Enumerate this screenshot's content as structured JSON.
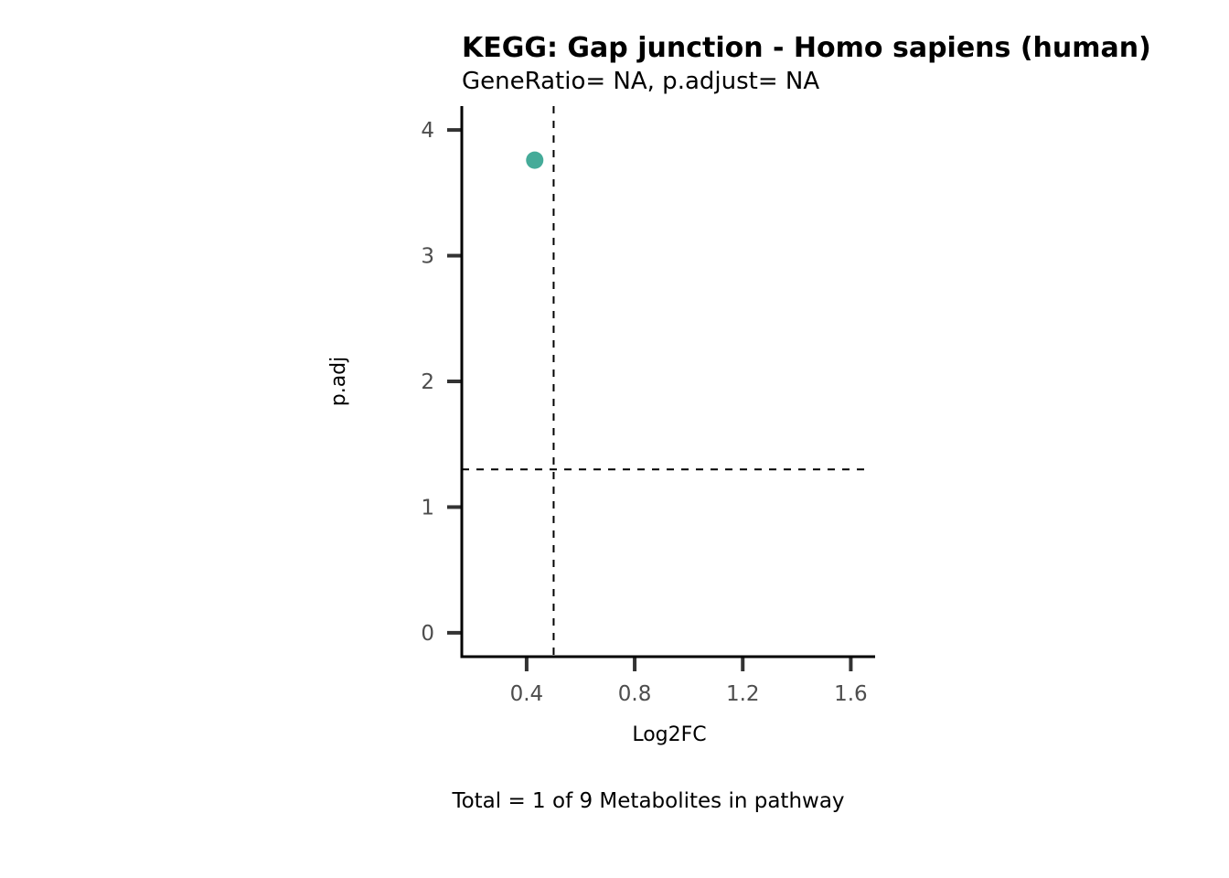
{
  "chart_data": {
    "type": "scatter",
    "title": "KEGG: Gap junction - Homo sapiens (human)",
    "subtitle": "GeneRatio= NA, p.adjust= NA",
    "xlabel": "Log2FC",
    "ylabel": "p.adj",
    "caption": "Total = 1 of 9 Metabolites in pathway",
    "xlim": [
      0.16,
      1.69
    ],
    "ylim": [
      -0.19,
      4.19
    ],
    "x_ticks": [
      0.4,
      0.8,
      1.2,
      1.6
    ],
    "x_tick_labels": [
      "0.4",
      "0.8",
      "1.2",
      "1.6"
    ],
    "y_ticks": [
      0,
      1,
      2,
      3,
      4
    ],
    "y_tick_labels": [
      "0",
      "1",
      "2",
      "3",
      "4"
    ],
    "points": [
      {
        "x": 0.43,
        "y": 3.76
      }
    ],
    "reference_lines": {
      "vertical_x": 0.5,
      "horizontal_y": 1.3,
      "style": "dashed"
    },
    "point_color": "#45ab99",
    "grid": false,
    "legend": "none"
  }
}
